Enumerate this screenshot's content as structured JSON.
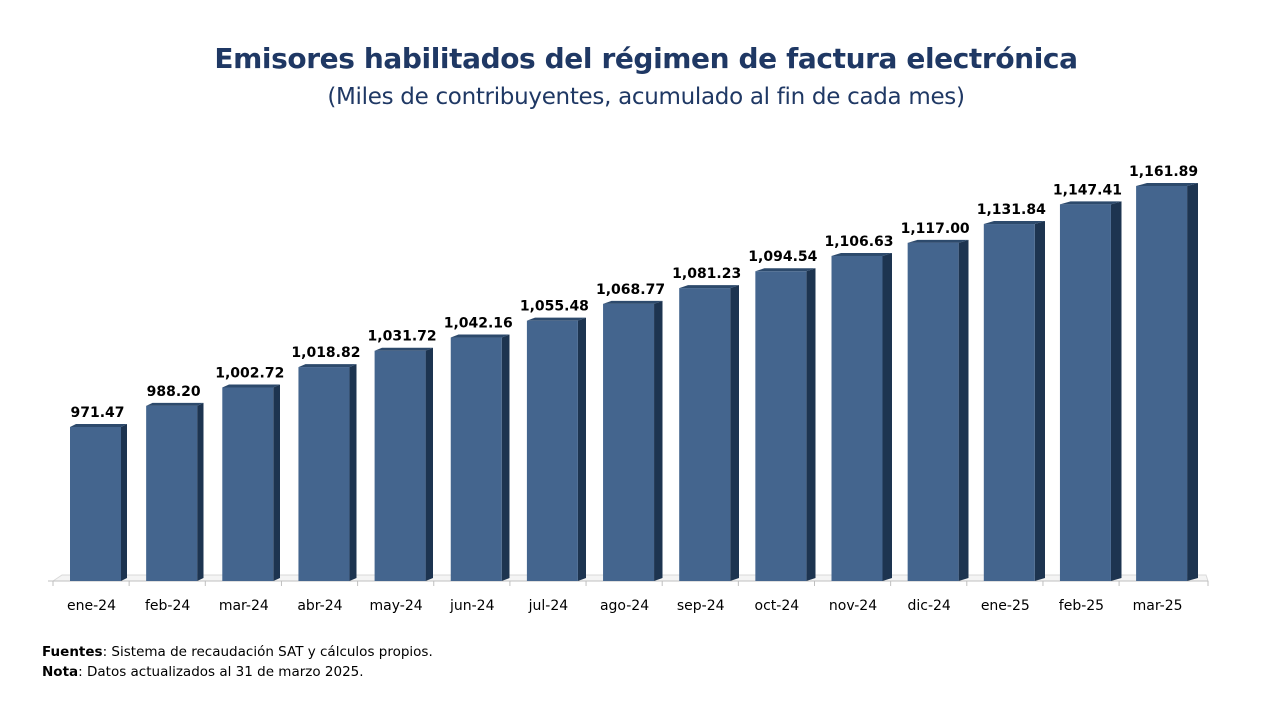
{
  "title": "Emisores habilitados del régimen de factura electrónica",
  "subtitle": "(Miles de contribuyentes, acumulado al fin de cada mes)",
  "footer": {
    "sources_label": "Fuentes",
    "sources_text": ": Sistema de recaudación SAT y cálculos propios.",
    "note_label": "Nota",
    "note_text": ": Datos actualizados al  31 de marzo 2025."
  },
  "colors": {
    "bar_front": "#44658e",
    "bar_side": "#1d3450",
    "bar_top": "#2d4a6c",
    "title": "#1f3864"
  },
  "chart_data": {
    "type": "bar",
    "title": "Emisores habilitados del régimen de factura electrónica",
    "subtitle": "(Miles de contribuyentes, acumulado al fin de cada mes)",
    "categories": [
      "ene-24",
      "feb-24",
      "mar-24",
      "abr-24",
      "may-24",
      "jun-24",
      "jul-24",
      "ago-24",
      "sep-24",
      "oct-24",
      "nov-24",
      "dic-24",
      "ene-25",
      "feb-25",
      "mar-25"
    ],
    "values": [
      971.47,
      988.2,
      1002.72,
      1018.82,
      1031.72,
      1042.16,
      1055.48,
      1068.77,
      1081.23,
      1094.54,
      1106.63,
      1117.0,
      1131.84,
      1147.41,
      1161.89
    ],
    "value_labels": [
      "971.47",
      "988.20",
      "1,002.72",
      "1,018.82",
      "1,031.72",
      "1,042.16",
      "1,055.48",
      "1,068.77",
      "1,081.23",
      "1,094.54",
      "1,106.63",
      "1,117.00",
      "1,131.84",
      "1,147.41",
      "1,161.89"
    ],
    "xlabel": "",
    "ylabel": "",
    "grid": false,
    "legend": "none"
  }
}
